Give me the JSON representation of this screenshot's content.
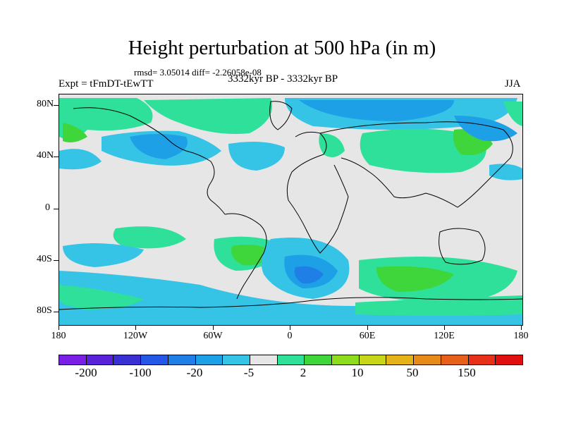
{
  "title": "Height perturbation at 500 hPa (in m)",
  "stats": "rmsd= 3.05014  diff= -2.26058e-08",
  "experiment": "Expt = tFmDT-tEwTT",
  "period": "3332kyr BP - 3332kyr BP",
  "season": "JJA",
  "y_ticks": [
    "80N",
    "40N",
    "0",
    "40S",
    "80S"
  ],
  "x_ticks": [
    "180",
    "120W",
    "60W",
    "0",
    "60E",
    "120E",
    "180"
  ],
  "colorbar": {
    "colors": [
      "#7a1fe6",
      "#5a22d8",
      "#3a2fd0",
      "#2457e6",
      "#1f7fe6",
      "#1ea0e6",
      "#35c3e6",
      "#e6e6e6",
      "#2ee09a",
      "#3ed63a",
      "#8fdc1f",
      "#c8d61a",
      "#e6b21a",
      "#e68a1a",
      "#e6601a",
      "#e6301a",
      "#e01010"
    ],
    "labels": [
      "-200",
      "-100",
      "-20",
      "-5",
      "2",
      "10",
      "50",
      "150"
    ]
  },
  "field_colors": {
    "land_bg": "#e6e6e6",
    "neg_light": "#35c3e6",
    "neg_mid": "#1ea0e6",
    "neg_dark": "#1f7fe6",
    "pos_light": "#2ee09a",
    "pos_mid": "#3ed63a"
  }
}
